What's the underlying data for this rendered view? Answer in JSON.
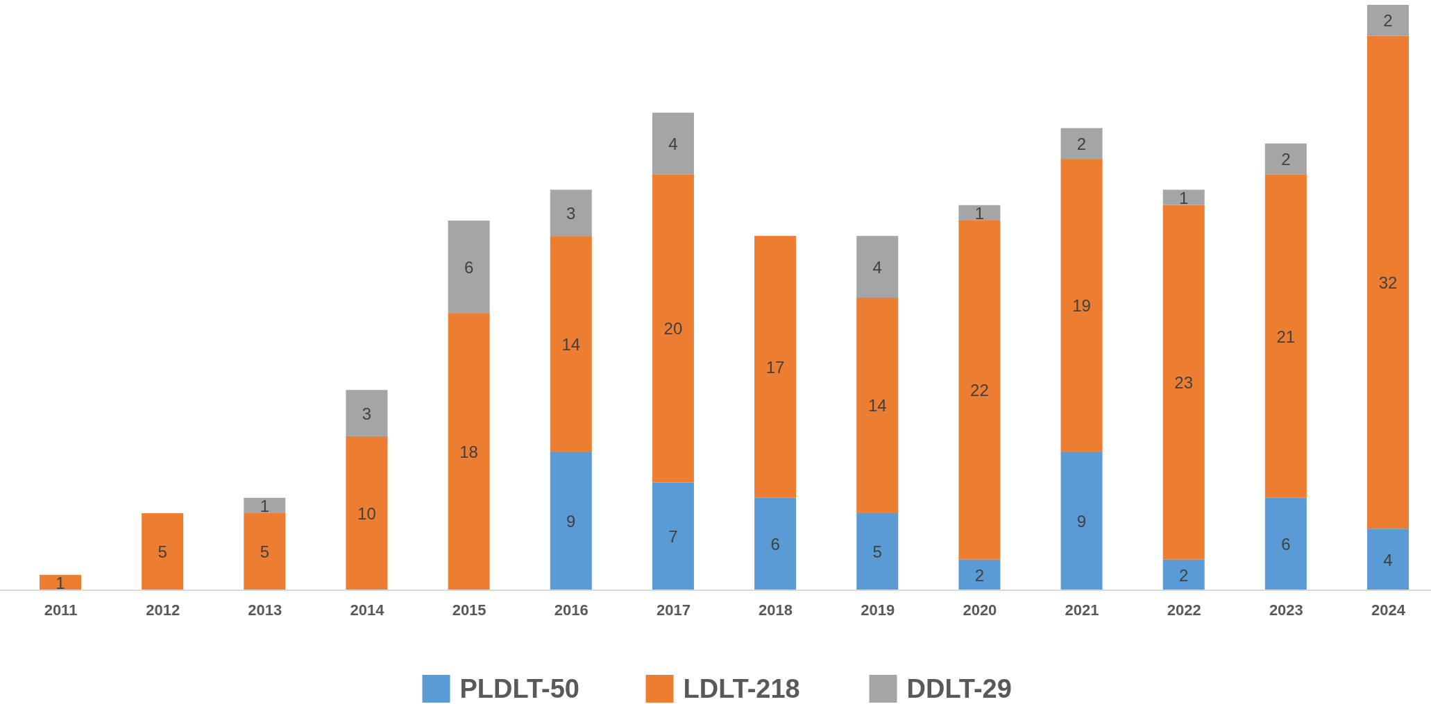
{
  "chart_data": {
    "type": "bar",
    "stacked": true,
    "data_labels": true,
    "legend": "bottom",
    "grid": false,
    "categories": [
      "2011",
      "2012",
      "2013",
      "2014",
      "2015",
      "2016",
      "2017",
      "2018",
      "2019",
      "2020",
      "2021",
      "2022",
      "2023",
      "2024"
    ],
    "series": [
      {
        "name": "PLDLT-50",
        "color": "#5b9bd5",
        "values": [
          null,
          null,
          null,
          null,
          null,
          9,
          7,
          6,
          5,
          2,
          9,
          2,
          6,
          4
        ]
      },
      {
        "name": "LDLT-218",
        "color": "#ed7d31",
        "values": [
          1,
          5,
          5,
          10,
          18,
          14,
          20,
          17,
          14,
          22,
          19,
          23,
          21,
          32
        ]
      },
      {
        "name": "DDLT-29",
        "color": "#a5a5a5",
        "values": [
          null,
          null,
          1,
          3,
          6,
          3,
          4,
          null,
          4,
          1,
          2,
          1,
          2,
          2
        ]
      }
    ]
  }
}
